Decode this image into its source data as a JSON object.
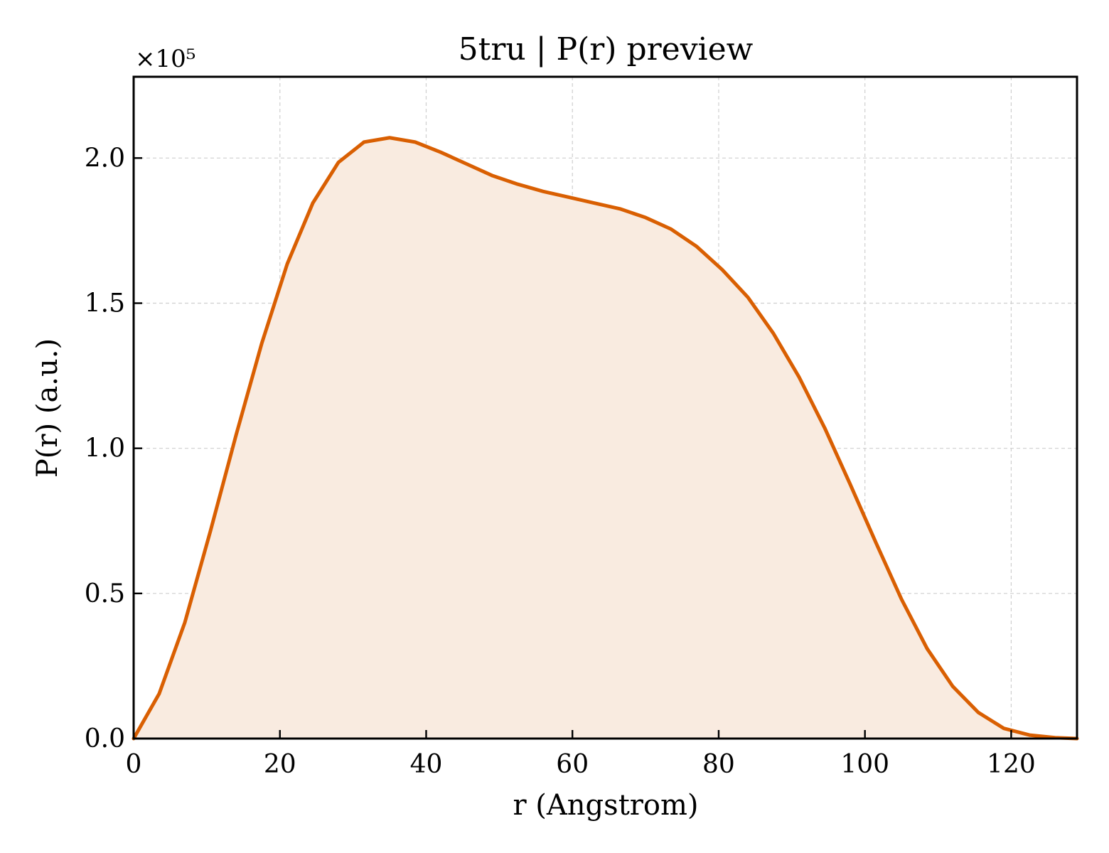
{
  "chart_data": {
    "type": "area",
    "title": "5tru | P(r) preview",
    "xlabel": "r (Angstrom)",
    "ylabel": "P(r) (a.u.)",
    "y_multiplier_label": "×10⁵",
    "xlim": [
      0,
      129
    ],
    "ylim": [
      0,
      2.28
    ],
    "y_scale_factor": 100000,
    "grid": true,
    "line_color": "#d95f02",
    "fill_color": "#f9ebe0",
    "x_ticks": [
      0,
      20,
      40,
      60,
      80,
      100,
      120
    ],
    "x_tick_labels": [
      "0",
      "20",
      "40",
      "60",
      "80",
      "100",
      "120"
    ],
    "y_ticks": [
      0,
      0.5,
      1.0,
      1.5,
      2.0
    ],
    "y_tick_labels": [
      "0.0",
      "0.5",
      "1.0",
      "1.5",
      "2.0"
    ],
    "series": [
      {
        "x": [
          0,
          3.5,
          7,
          10.5,
          14,
          17.5,
          21,
          24.5,
          28,
          31.5,
          35,
          38.5,
          42,
          45.5,
          49,
          52.5,
          56,
          59.5,
          63,
          66.5,
          70,
          73.5,
          77,
          80.5,
          84,
          87.5,
          91,
          94.5,
          98,
          101.5,
          105,
          108.5,
          112,
          115.5,
          119,
          122.5,
          126,
          129
        ],
        "y": [
          0.0,
          0.155,
          0.4,
          0.715,
          1.045,
          1.36,
          1.635,
          1.845,
          1.985,
          2.055,
          2.07,
          2.055,
          2.02,
          1.98,
          1.94,
          1.91,
          1.885,
          1.865,
          1.845,
          1.825,
          1.795,
          1.755,
          1.695,
          1.615,
          1.52,
          1.395,
          1.245,
          1.07,
          0.875,
          0.675,
          0.48,
          0.31,
          0.18,
          0.09,
          0.035,
          0.012,
          0.003,
          0.0
        ]
      }
    ]
  }
}
